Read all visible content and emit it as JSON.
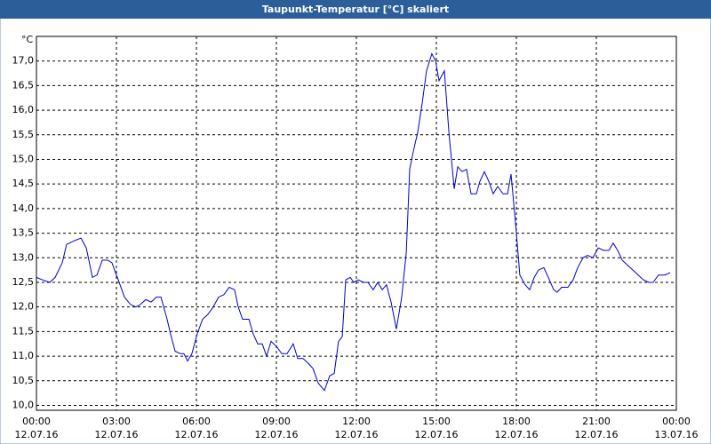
{
  "chart_data": {
    "type": "line",
    "title": "Taupunkt-Temperatur [°C] skaliert",
    "y_label": "°C",
    "grid": true,
    "xlim": [
      0,
      24
    ],
    "xticks": [
      {
        "value": 0,
        "label": "00:00",
        "date": "12.07.16"
      },
      {
        "value": 3,
        "label": "03:00",
        "date": "12.07.16"
      },
      {
        "value": 6,
        "label": "06:00",
        "date": "12.07.16"
      },
      {
        "value": 9,
        "label": "09:00",
        "date": "12.07.16"
      },
      {
        "value": 12,
        "label": "12:00",
        "date": "12.07.16"
      },
      {
        "value": 15,
        "label": "15:00",
        "date": "12.07.16"
      },
      {
        "value": 18,
        "label": "18:00",
        "date": "12.07.16"
      },
      {
        "value": 21,
        "label": "21:00",
        "date": "12.07.16"
      },
      {
        "value": 24,
        "label": "00:00",
        "date": "13.07.16"
      }
    ],
    "ylim": [
      9.9,
      17.5
    ],
    "yticks": [
      {
        "value": 10,
        "label": "10,0"
      },
      {
        "value": 10.5,
        "label": "10,5"
      },
      {
        "value": 11,
        "label": "11,0"
      },
      {
        "value": 11.5,
        "label": "11,5"
      },
      {
        "value": 12,
        "label": "12,0"
      },
      {
        "value": 12.5,
        "label": "12,5"
      },
      {
        "value": 13,
        "label": "13,0"
      },
      {
        "value": 13.5,
        "label": "13,5"
      },
      {
        "value": 14,
        "label": "14,0"
      },
      {
        "value": 14.5,
        "label": "14,5"
      },
      {
        "value": 15,
        "label": "15,0"
      },
      {
        "value": 15.5,
        "label": "15,5"
      },
      {
        "value": 16,
        "label": "16,0"
      },
      {
        "value": 16.5,
        "label": "16,5"
      },
      {
        "value": 17,
        "label": "17,0"
      }
    ],
    "color": "#0000cc",
    "x": [
      0,
      0.23,
      0.5,
      0.7,
      0.97,
      1.13,
      1.43,
      1.67,
      1.87,
      2.1,
      2.27,
      2.47,
      2.67,
      2.83,
      3.07,
      3.3,
      3.53,
      3.73,
      3.9,
      4.1,
      4.3,
      4.5,
      4.67,
      4.9,
      5.03,
      5.2,
      5.4,
      5.53,
      5.67,
      5.83,
      6.03,
      6.23,
      6.43,
      6.63,
      6.83,
      7.03,
      7.23,
      7.43,
      7.57,
      7.73,
      7.97,
      8.13,
      8.3,
      8.47,
      8.63,
      8.8,
      9.0,
      9.2,
      9.4,
      9.63,
      9.8,
      10.0,
      10.2,
      10.37,
      10.57,
      10.8,
      11.0,
      11.17,
      11.33,
      11.47,
      11.6,
      11.77,
      11.9,
      12.07,
      12.27,
      12.43,
      12.63,
      12.8,
      12.97,
      13.13,
      13.3,
      13.5,
      13.7,
      13.87,
      14.0,
      14.13,
      14.3,
      14.47,
      14.63,
      14.83,
      14.97,
      15.1,
      15.3,
      15.47,
      15.67,
      15.8,
      15.97,
      16.13,
      16.3,
      16.5,
      16.63,
      16.8,
      16.97,
      17.13,
      17.3,
      17.5,
      17.67,
      17.8,
      17.97,
      18.13,
      18.33,
      18.5,
      18.67,
      18.83,
      19.03,
      19.2,
      19.4,
      19.53,
      19.7,
      19.93,
      20.13,
      20.3,
      20.5,
      20.67,
      20.87,
      21.07,
      21.27,
      21.47,
      21.63,
      21.8,
      21.97,
      22.17,
      22.37,
      22.57,
      22.77,
      22.97,
      23.13,
      23.33,
      23.57,
      23.77
    ],
    "values": [
      12.6,
      12.55,
      12.5,
      12.6,
      12.9,
      13.27,
      13.35,
      13.4,
      13.2,
      12.6,
      12.65,
      12.95,
      12.95,
      12.9,
      12.55,
      12.2,
      12.05,
      12.0,
      12.05,
      12.15,
      12.1,
      12.2,
      12.2,
      11.75,
      11.45,
      11.1,
      11.05,
      11.05,
      10.9,
      11.05,
      11.45,
      11.75,
      11.85,
      12.0,
      12.2,
      12.25,
      12.4,
      12.35,
      12.0,
      11.75,
      11.75,
      11.45,
      11.25,
      11.25,
      11.0,
      11.3,
      11.2,
      11.05,
      11.05,
      11.25,
      10.95,
      10.95,
      10.85,
      10.75,
      10.45,
      10.3,
      10.6,
      10.65,
      11.3,
      11.4,
      12.55,
      12.6,
      12.5,
      12.55,
      12.5,
      12.5,
      12.35,
      12.5,
      12.35,
      12.45,
      12.1,
      11.55,
      12.2,
      13.1,
      14.8,
      15.15,
      15.55,
      16.15,
      16.8,
      17.15,
      17.0,
      16.6,
      16.8,
      15.55,
      14.4,
      14.85,
      14.75,
      14.8,
      14.3,
      14.3,
      14.55,
      14.75,
      14.55,
      14.3,
      14.45,
      14.3,
      14.3,
      14.7,
      13.7,
      12.65,
      12.45,
      12.35,
      12.6,
      12.75,
      12.8,
      12.6,
      12.35,
      12.3,
      12.4,
      12.4,
      12.55,
      12.8,
      13.0,
      13.05,
      13.0,
      13.2,
      13.15,
      13.15,
      13.3,
      13.15,
      12.95,
      12.85,
      12.75,
      12.65,
      12.55,
      12.5,
      12.5,
      12.65,
      12.65,
      12.7
    ]
  }
}
